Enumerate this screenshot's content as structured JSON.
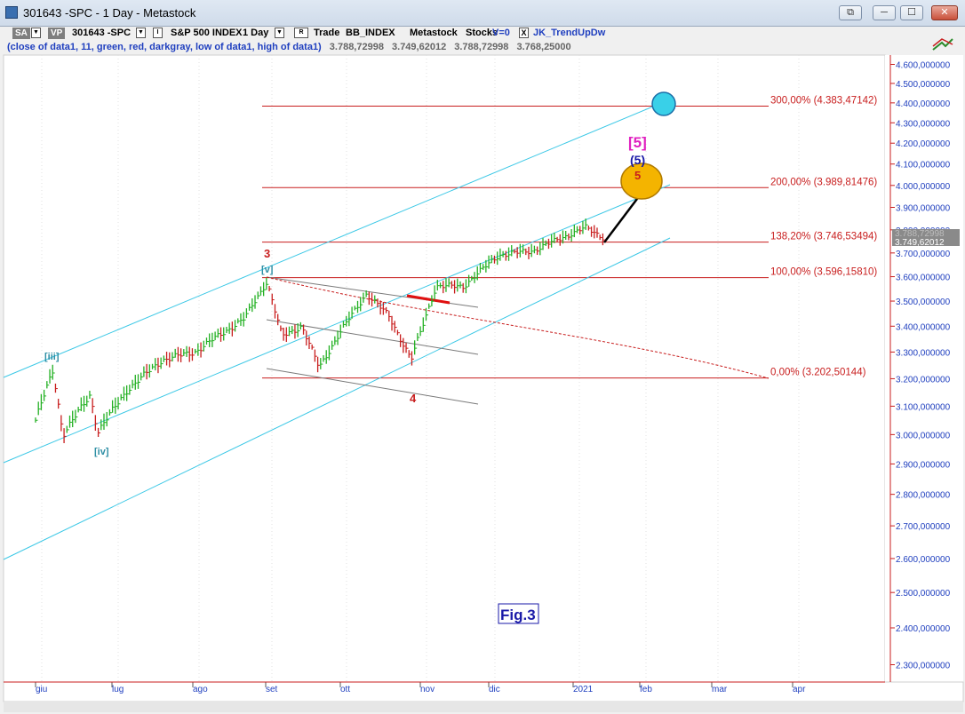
{
  "window": {
    "title": "301643 -SPC - 1 Day - Metastock",
    "buttons": {
      "restore_tool": "⧉",
      "minimize": "─",
      "maximize": "☐",
      "close": "✕"
    }
  },
  "toolbar": {
    "sa_label": "SA",
    "vp_label": "VP",
    "symbol": "301643 -SPC",
    "i_label": "I",
    "security_name": "S&P 500 INDEX",
    "period": "1 Day",
    "r_label": "R",
    "trade_label": "Trade",
    "index_name": "BB_INDEX",
    "source": "Metastock",
    "asset_class": "Stocks",
    "volume_label": "V=0",
    "study_checkbox": "X",
    "study_name": "JK_TrendUpDw"
  },
  "info_row": {
    "formula": "(close of data1,  11,  green,  red,  darkgray,  low of data1,  high of data1)",
    "values": [
      "3.788,72998",
      "3.749,62012",
      "3.788,72998",
      "3.768,25000"
    ]
  },
  "chart_data": {
    "type": "ohlc-bar",
    "series_colors": {
      "up": "#22b022",
      "down": "#c81e1e",
      "neutral": "#808080"
    },
    "x_ticks": [
      "giu",
      "lug",
      "ago",
      "set",
      "ott",
      "nov",
      "dic",
      "2021",
      "feb",
      "mar",
      "apr"
    ],
    "y_ticks": [
      "4.600,000000",
      "4.500,000000",
      "4.400,000000",
      "4.300,000000",
      "4.200,000000",
      "4.100,000000",
      "4.000,000000",
      "3.900,000000",
      "3.800,000000",
      "3.700,000000",
      "3.600,000000",
      "3.500,000000",
      "3.400,000000",
      "3.300,000000",
      "3.200,000000",
      "3.100,000000",
      "3.000,000000",
      "2.900,000000",
      "2.800,000000",
      "2.700,000000",
      "2.600,000000",
      "2.500,000000",
      "2.400,000000",
      "2.300,000000"
    ],
    "y_scale": "log",
    "ylim": [
      2270,
      4680
    ],
    "price_overlay_hidden": "3.788,72998",
    "last_price": "3.749,62012",
    "key_points": [
      {
        "date": "2020-06-01",
        "price": 3050
      },
      {
        "date": "2020-06-08",
        "price": 3230
      },
      {
        "date": "2020-06-12",
        "price": 3000
      },
      {
        "date": "2020-06-23",
        "price": 3140
      },
      {
        "date": "2020-06-26",
        "price": 3010
      },
      {
        "date": "2020-07-08",
        "price": 3160
      },
      {
        "date": "2020-07-22",
        "price": 3270
      },
      {
        "date": "2020-08-04",
        "price": 3300
      },
      {
        "date": "2020-08-24",
        "price": 3430
      },
      {
        "date": "2020-09-02",
        "price": 3580
      },
      {
        "date": "2020-09-08",
        "price": 3360
      },
      {
        "date": "2020-09-16",
        "price": 3400
      },
      {
        "date": "2020-09-23",
        "price": 3240
      },
      {
        "date": "2020-10-01",
        "price": 3370
      },
      {
        "date": "2020-10-12",
        "price": 3530
      },
      {
        "date": "2020-10-21",
        "price": 3440
      },
      {
        "date": "2020-10-30",
        "price": 3270
      },
      {
        "date": "2020-11-09",
        "price": 3560
      },
      {
        "date": "2020-11-20",
        "price": 3560
      },
      {
        "date": "2020-12-04",
        "price": 3690
      },
      {
        "date": "2020-12-18",
        "price": 3710
      },
      {
        "date": "2021-01-08",
        "price": 3810
      },
      {
        "date": "2021-01-15",
        "price": 3768
      }
    ],
    "fib_levels": [
      {
        "label": "300,00% (4.383,47142)",
        "price": 4383.47142
      },
      {
        "label": "200,00% (3.989,81476)",
        "price": 3989.81476
      },
      {
        "label": "138,20% (3.746,53494)",
        "price": 3746.53494
      },
      {
        "label": "100,00% (3.596,15810)",
        "price": 3596.1581
      },
      {
        "label": "0,00% (3.202,50144)",
        "price": 3202.50144
      }
    ],
    "wave_labels": {
      "iii": "[iii]",
      "iv": "[iv]",
      "v": "[v]",
      "three": "3",
      "four": "4",
      "five_bracket": "[5]",
      "five_paren": "(5)",
      "five": "5"
    },
    "figure_label": "Fig.3",
    "colors": {
      "fib": "#c81e1e",
      "channel": "#3cc8e6",
      "gray_channel": "#7a7a7a",
      "target_circle": "#39d0e8",
      "target_oval": "#f4b400"
    }
  }
}
